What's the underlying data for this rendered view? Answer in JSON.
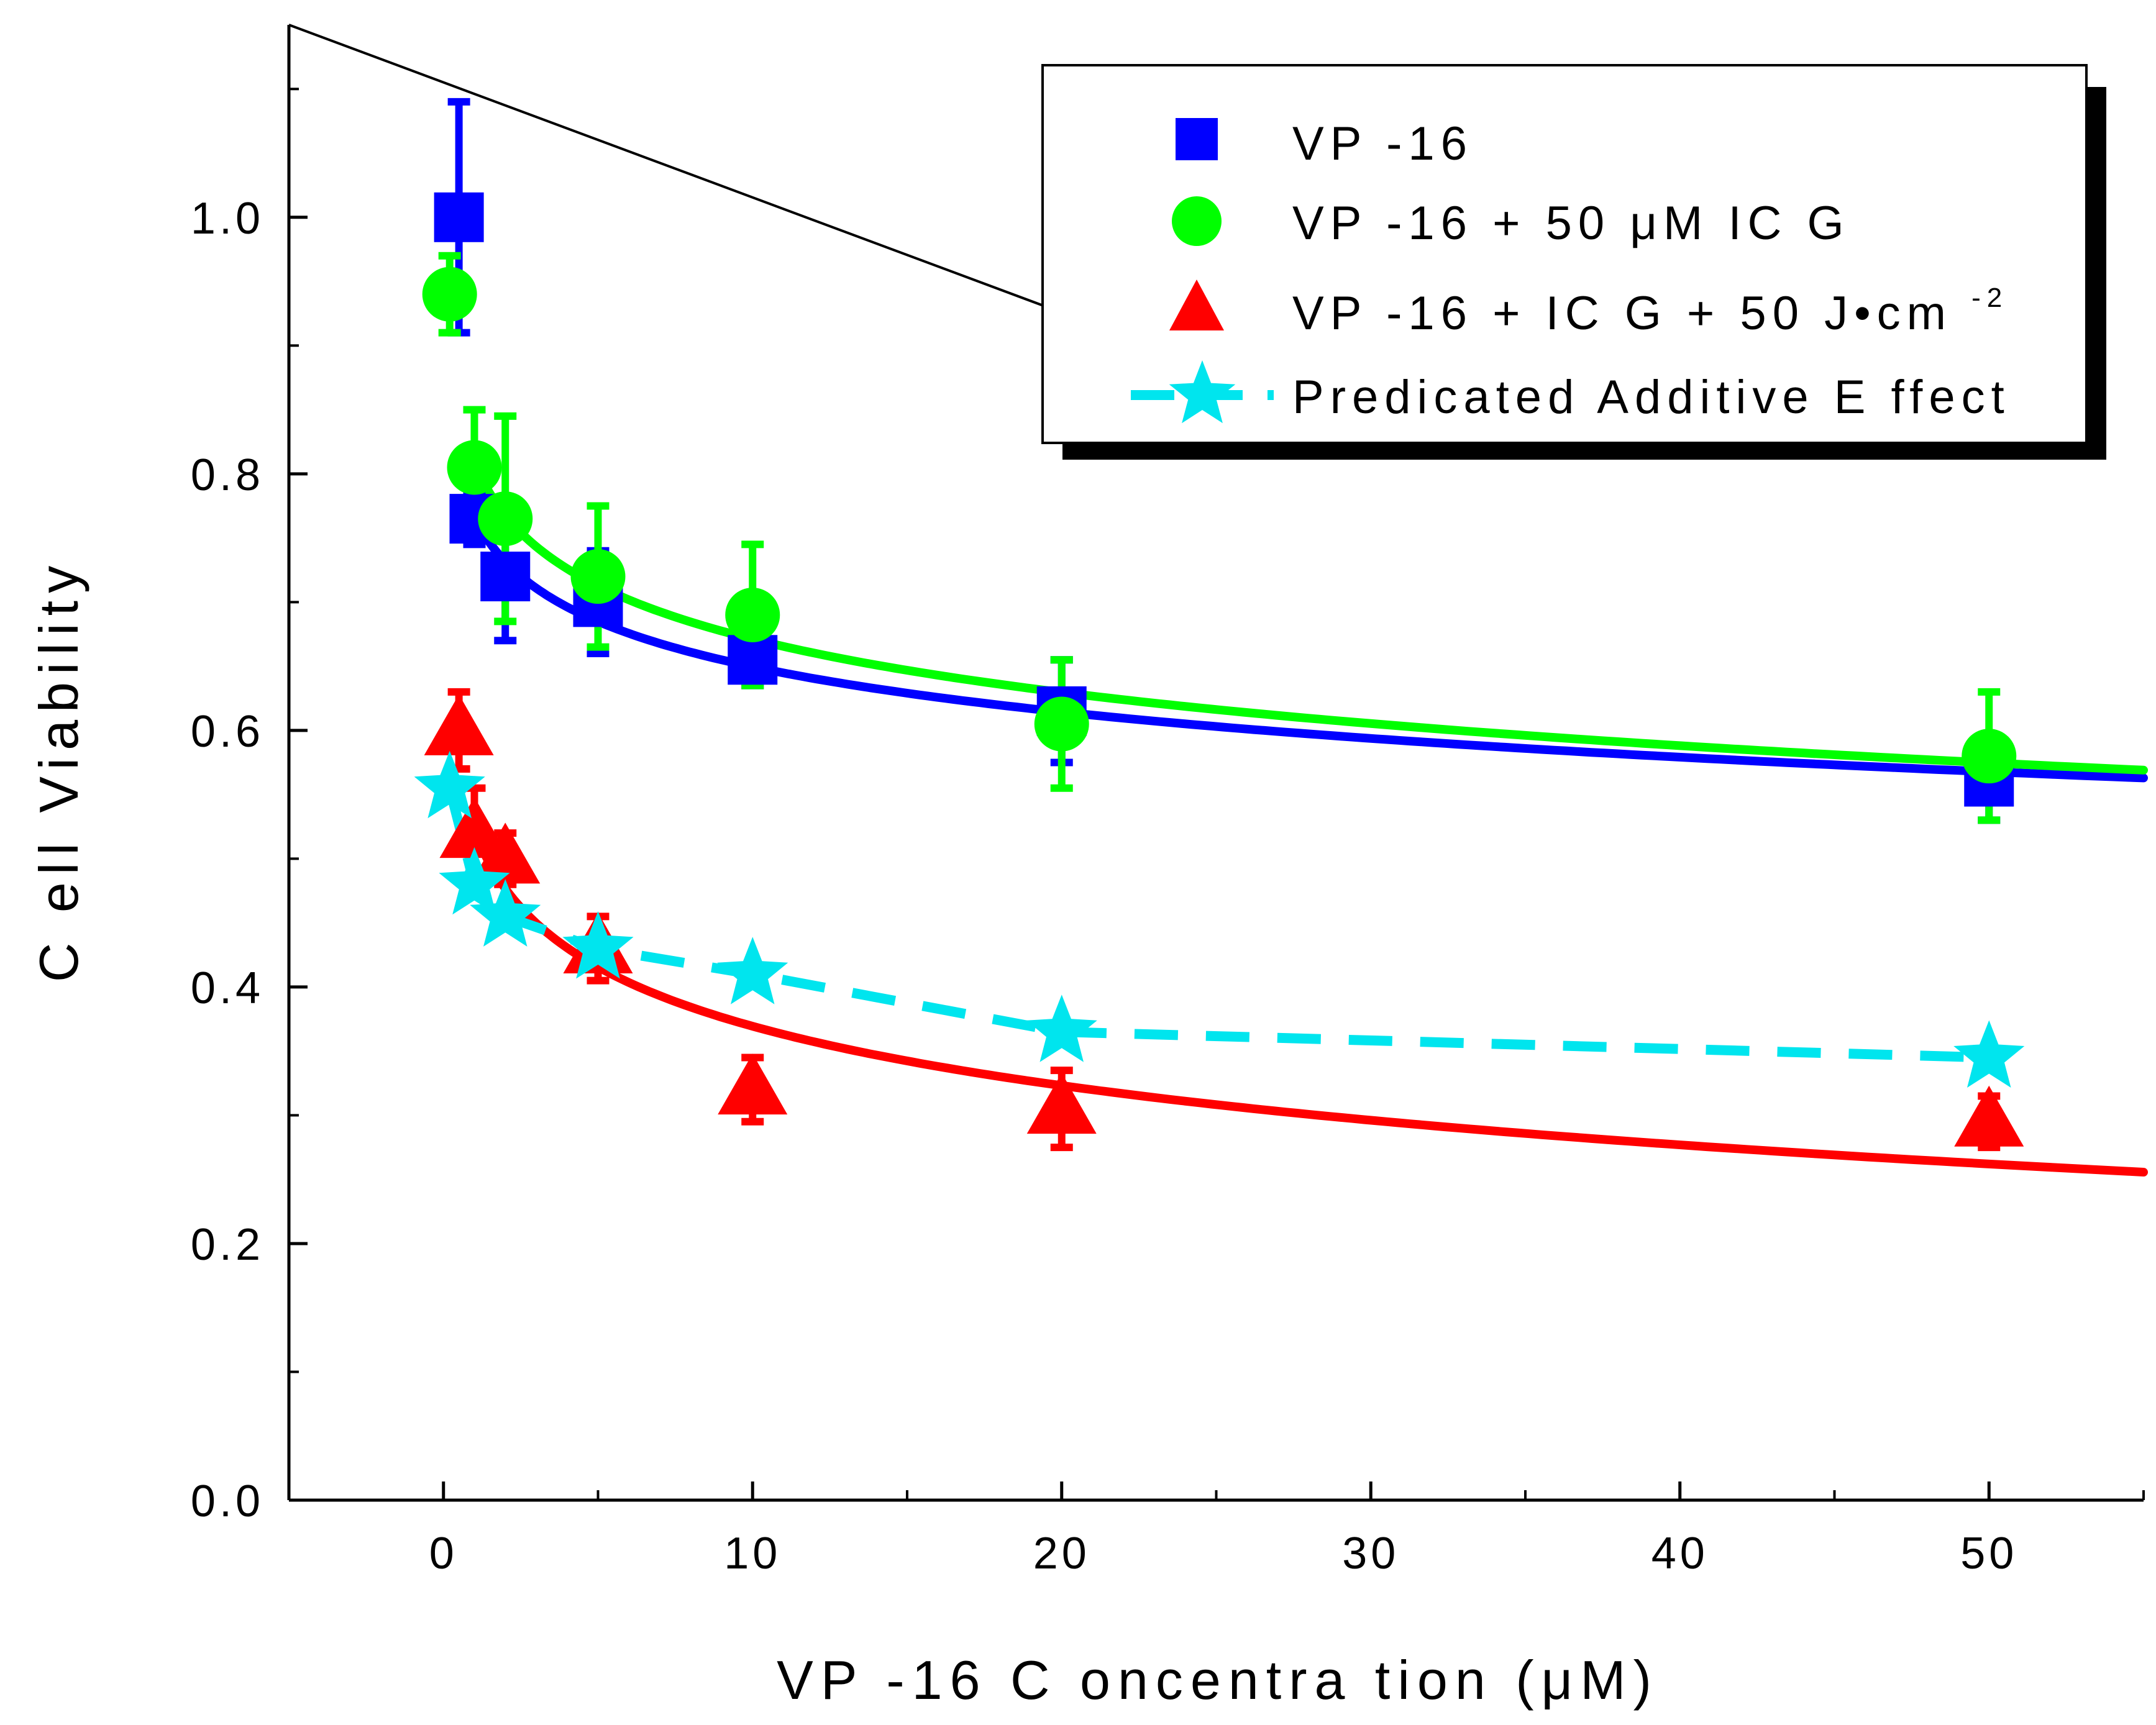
{
  "chart_data": {
    "type": "scatter",
    "xlabel": "VP -16  C oncentra tion (μM)",
    "ylabel": "C ell Viability",
    "xlim": [
      -5,
      55
    ],
    "ylim": [
      0.0,
      1.15
    ],
    "xticks": [
      0,
      10,
      20,
      30,
      40,
      50
    ],
    "xtick_labels": [
      "0",
      "10",
      "20",
      "30",
      "40",
      "50"
    ],
    "yticks": [
      0.0,
      0.2,
      0.4,
      0.6,
      0.8,
      1.0
    ],
    "ytick_labels": [
      "0.0",
      "0.2",
      "0.4",
      "0.6",
      "0.8",
      "1.0"
    ],
    "legend_position": "top-right",
    "series": [
      {
        "name": "VP -16",
        "marker": "square",
        "color": "#0000ff",
        "x": [
          0.5,
          1,
          2,
          5,
          10,
          20,
          50
        ],
        "y": [
          1.0,
          0.765,
          0.72,
          0.7,
          0.655,
          0.615,
          0.56
        ],
        "err": [
          0.09,
          0.02,
          0.05,
          0.04,
          0.02,
          0.04,
          0.03
        ],
        "fit_line": true
      },
      {
        "name": "VP -16 + 50 μM IC G",
        "marker": "circle",
        "color": "#00ff00",
        "x": [
          0.2,
          1,
          2,
          5,
          10,
          20,
          50
        ],
        "y": [
          0.94,
          0.805,
          0.765,
          0.72,
          0.69,
          0.605,
          0.58
        ],
        "err": [
          0.03,
          0.045,
          0.08,
          0.055,
          0.055,
          0.05,
          0.05
        ],
        "fit_line": true
      },
      {
        "name": "VP -16 + IC G + 50 J•cm",
        "name_superscript": "-2",
        "marker": "triangle",
        "color": "#ff0000",
        "x": [
          0.5,
          1,
          2,
          5,
          10,
          20,
          50
        ],
        "y": [
          0.6,
          0.52,
          0.5,
          0.43,
          0.32,
          0.305,
          0.295
        ],
        "err": [
          0.03,
          0.035,
          0.02,
          0.025,
          0.025,
          0.03,
          0.02
        ],
        "fit_line": true
      },
      {
        "name": "Predicated Additive  E ffect",
        "marker": "star",
        "color": "#00e5ee",
        "line_style": "dashed",
        "x": [
          0.2,
          1,
          2,
          5,
          10,
          20,
          50
        ],
        "y": [
          0.555,
          0.48,
          0.455,
          0.43,
          0.41,
          0.365,
          0.345
        ]
      }
    ],
    "annotation_line": {
      "description": "black diagonal line",
      "x": [
        -5,
        27
      ],
      "y": [
        1.15,
        0.863
      ]
    }
  }
}
